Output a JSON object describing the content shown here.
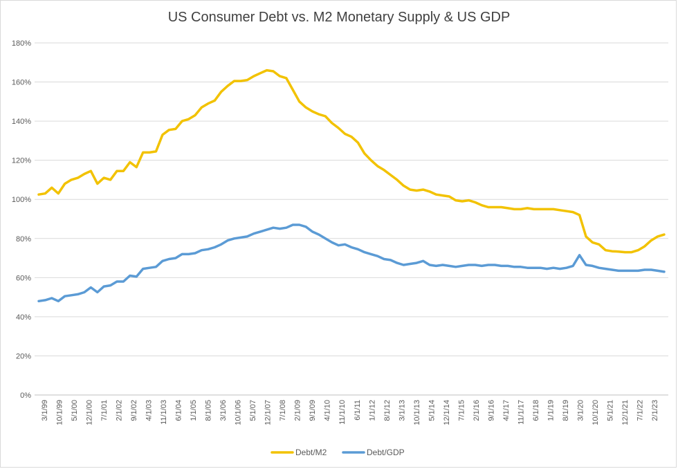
{
  "chart_data": {
    "type": "line",
    "title": "US Consumer Debt vs. M2 Monetary Supply & US GDP",
    "xlabel": "",
    "ylabel": "",
    "ylim": [
      0,
      180
    ],
    "y_ticks": [
      "0%",
      "20%",
      "40%",
      "60%",
      "80%",
      "100%",
      "120%",
      "140%",
      "160%",
      "180%"
    ],
    "x_tick_labels": [
      "3/1/99",
      "10/1/99",
      "5/1/00",
      "12/1/00",
      "7/1/01",
      "2/1/02",
      "9/1/02",
      "4/1/03",
      "11/1/03",
      "6/1/04",
      "1/1/05",
      "8/1/05",
      "3/1/06",
      "10/1/06",
      "5/1/07",
      "12/1/07",
      "7/1/08",
      "2/1/09",
      "9/1/09",
      "4/1/10",
      "11/1/10",
      "6/1/11",
      "1/1/12",
      "8/1/12",
      "3/1/13",
      "10/1/13",
      "5/1/14",
      "12/1/14",
      "7/1/15",
      "2/1/16",
      "9/1/16",
      "4/1/17",
      "11/1/17",
      "6/1/18",
      "1/1/19",
      "8/1/19",
      "3/1/20",
      "10/1/20",
      "5/1/21",
      "12/1/21",
      "7/1/22",
      "2/1/23"
    ],
    "grid": true,
    "legend_position": "bottom",
    "series": [
      {
        "name": "Debt/M2",
        "color": "#f2c200",
        "values": [
          102.5,
          103,
          106,
          103,
          108,
          110,
          111,
          113,
          114.5,
          108,
          111,
          110,
          114.5,
          114.5,
          119,
          116.5,
          124,
          124,
          124.5,
          133,
          135.5,
          136,
          140,
          141,
          143,
          147,
          149,
          150.5,
          155,
          158,
          160.5,
          160.5,
          161,
          163,
          164.5,
          166,
          165.5,
          163,
          162,
          156,
          150,
          147,
          145,
          143.5,
          142.5,
          139,
          136.5,
          133.5,
          132,
          129,
          123.5,
          120,
          117,
          115,
          112.5,
          110,
          107,
          105,
          104.5,
          105,
          104,
          102.5,
          102,
          101.5,
          99.5,
          99,
          99.5,
          98.5,
          97,
          96,
          96,
          96,
          95.5,
          95,
          95,
          95.5,
          95,
          95,
          95,
          95,
          94.5,
          94,
          93.5,
          92,
          81,
          78,
          77,
          74,
          73.5,
          73.3,
          73,
          73,
          74,
          76,
          79,
          81,
          82
        ]
      },
      {
        "name": "Debt/GDP",
        "color": "#5b9bd5",
        "values": [
          48,
          48.5,
          49.5,
          48,
          50.5,
          51,
          51.5,
          52.5,
          55,
          52.5,
          55.5,
          56,
          58,
          58,
          61,
          60.5,
          64.5,
          65,
          65.5,
          68.5,
          69.5,
          70,
          72,
          72,
          72.5,
          74,
          74.5,
          75.5,
          77,
          79,
          80,
          80.5,
          81,
          82.5,
          83.5,
          84.5,
          85.5,
          85,
          85.5,
          87,
          87,
          86,
          83.5,
          82,
          80,
          78,
          76.5,
          77,
          75.5,
          74.5,
          73,
          72,
          71,
          69.5,
          69,
          67.5,
          66.5,
          67,
          67.5,
          68.5,
          66.5,
          66,
          66.5,
          66,
          65.5,
          66,
          66.5,
          66.5,
          66,
          66.5,
          66.5,
          66,
          66,
          65.5,
          65.5,
          65,
          65,
          65,
          64.5,
          65,
          64.5,
          65,
          66,
          71.5,
          66.5,
          66,
          65,
          64.5,
          64,
          63.5,
          63.5,
          63.5,
          63.5,
          64,
          64,
          63.5,
          63
        ]
      }
    ]
  }
}
